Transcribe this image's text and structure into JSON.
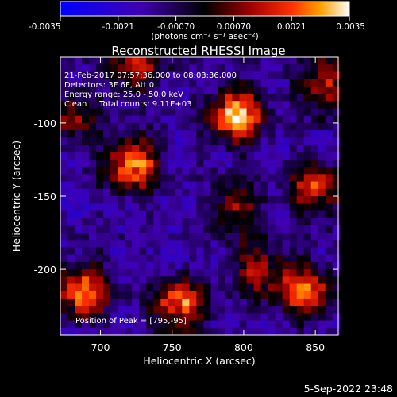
{
  "chart_data": {
    "type": "heatmap",
    "title": "Reconstructed RHESSI Image",
    "xlabel": "Heliocentric X (arcsec)",
    "ylabel": "Heliocentric Y (arcsec)",
    "xlim": [
      672,
      866
    ],
    "ylim": [
      -245,
      -55
    ],
    "x_ticks": [
      700,
      750,
      800,
      850
    ],
    "y_ticks": [
      -100,
      -150,
      -200
    ],
    "colorbar": {
      "range": [
        -0.0035,
        0.0035
      ],
      "ticks": [
        "-0.0035",
        "-0.0021",
        "-0.00070",
        "0.00070",
        "0.0021",
        "0.0035"
      ],
      "label": "(photons cm⁻² s⁻¹ asec⁻²)"
    },
    "annotations": [
      "21-Feb-2017 07:57:36.000 to 08:03:36.000",
      "Detectors: 3F 6F, Att 0",
      "Energy range: 25.0 - 50.0 keV",
      "Clean     Total counts: 9.11E+03"
    ],
    "peak_label": "Position of Peak = [795,-95]",
    "sources": [
      {
        "x": 795,
        "y": -95,
        "amp": 0.0035
      },
      {
        "x": 722,
        "y": -128,
        "amp": 0.003
      },
      {
        "x": 688,
        "y": -215,
        "amp": 0.0028
      },
      {
        "x": 755,
        "y": -225,
        "amp": 0.0025
      },
      {
        "x": 842,
        "y": -215,
        "amp": 0.0026
      },
      {
        "x": 850,
        "y": -145,
        "amp": 0.0019
      },
      {
        "x": 857,
        "y": -75,
        "amp": 0.0017
      },
      {
        "x": 725,
        "y": -60,
        "amp": 0.0016
      },
      {
        "x": 680,
        "y": -95,
        "amp": 0.0011
      },
      {
        "x": 810,
        "y": -200,
        "amp": 0.0012
      },
      {
        "x": 795,
        "y": -158,
        "amp": 0.0011
      }
    ],
    "background": -0.0012,
    "grid": false
  },
  "footer": {
    "timestamp": "5-Sep-2022 23:48"
  }
}
